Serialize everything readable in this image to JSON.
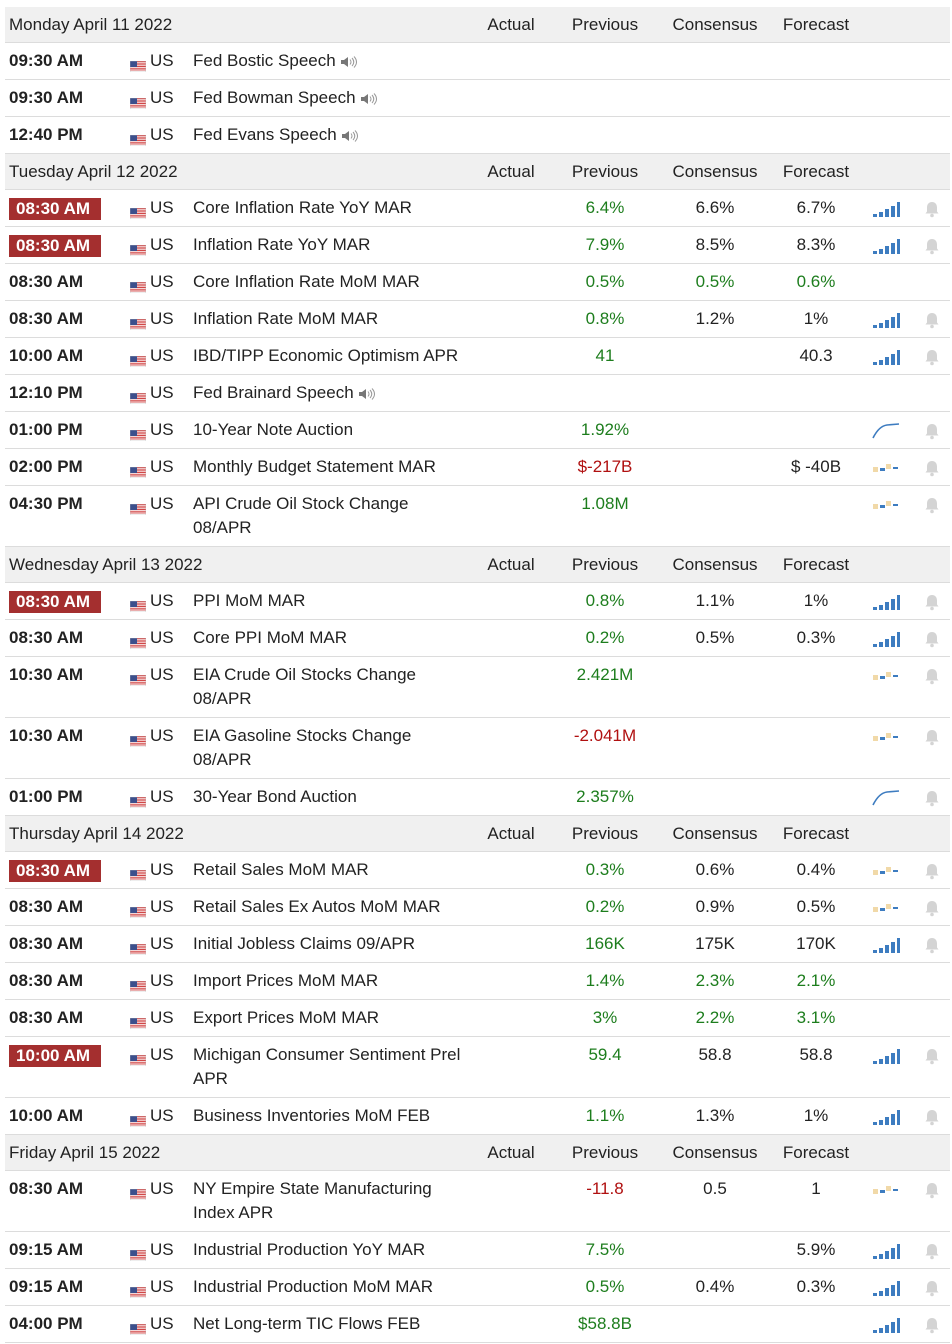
{
  "columns": [
    "Actual",
    "Previous",
    "Consensus",
    "Forecast"
  ],
  "days": [
    {
      "date": "Monday April 11 2022",
      "events": [
        {
          "time": "09:30 AM",
          "country": "US",
          "event": "Fed Bostic Speech",
          "speech": true
        },
        {
          "time": "09:30 AM",
          "country": "US",
          "event": "Fed Bowman Speech",
          "speech": true
        },
        {
          "time": "12:40 PM",
          "country": "US",
          "event": "Fed Evans Speech",
          "speech": true
        }
      ]
    },
    {
      "date": "Tuesday April 12 2022",
      "events": [
        {
          "time": "08:30 AM",
          "highlight": true,
          "country": "US",
          "event": "Core Inflation Rate YoY MAR",
          "previous": "6.4%",
          "previous_color": "#1d7d1d",
          "consensus": "6.6%",
          "forecast": "6.7%",
          "mini_chart": "bars",
          "alert": true
        },
        {
          "time": "08:30 AM",
          "highlight": true,
          "country": "US",
          "event": "Inflation Rate YoY MAR",
          "previous": "7.9%",
          "previous_color": "#1d7d1d",
          "consensus": "8.5%",
          "forecast": "8.3%",
          "mini_chart": "bars",
          "alert": true
        },
        {
          "time": "08:30 AM",
          "country": "US",
          "event": "Core Inflation Rate MoM MAR",
          "previous": "0.5%",
          "previous_color": "#1d7d1d",
          "consensus": "0.5%",
          "consensus_color": "#1d7d1d",
          "forecast": "0.6%",
          "forecast_color": "#1d7d1d"
        },
        {
          "time": "08:30 AM",
          "country": "US",
          "event": "Inflation Rate MoM MAR",
          "previous": "0.8%",
          "previous_color": "#1d7d1d",
          "consensus": "1.2%",
          "forecast": "1%",
          "mini_chart": "bars",
          "alert": true
        },
        {
          "time": "10:00 AM",
          "country": "US",
          "event": "IBD/TIPP Economic Optimism APR",
          "previous": "41",
          "previous_color": "#1d7d1d",
          "forecast": "40.3",
          "mini_chart": "bars",
          "alert": true
        },
        {
          "time": "12:10 PM",
          "country": "US",
          "event": "Fed Brainard Speech",
          "speech": true
        },
        {
          "time": "01:00 PM",
          "country": "US",
          "event": "10-Year Note Auction",
          "previous": "1.92%",
          "previous_color": "#1d7d1d",
          "mini_chart": "curve",
          "alert": true
        },
        {
          "time": "02:00 PM",
          "country": "US",
          "event": "Monthly Budget Statement MAR",
          "previous": "$-217B",
          "previous_color": "#b01010",
          "forecast": "$ -40B",
          "mini_chart": "mixed",
          "alert": true
        },
        {
          "time": "04:30 PM",
          "country": "US",
          "event": "API Crude Oil Stock Change 08/APR",
          "previous": "1.08M",
          "previous_color": "#1d7d1d",
          "mini_chart": "mixed",
          "alert": true
        }
      ]
    },
    {
      "date": "Wednesday April 13 2022",
      "events": [
        {
          "time": "08:30 AM",
          "highlight": true,
          "country": "US",
          "event": "PPI MoM MAR",
          "previous": "0.8%",
          "previous_color": "#1d7d1d",
          "consensus": "1.1%",
          "forecast": "1%",
          "mini_chart": "bars",
          "alert": true
        },
        {
          "time": "08:30 AM",
          "country": "US",
          "event": "Core PPI MoM MAR",
          "previous": "0.2%",
          "previous_color": "#1d7d1d",
          "consensus": "0.5%",
          "forecast": "0.3%",
          "mini_chart": "bars",
          "alert": true
        },
        {
          "time": "10:30 AM",
          "country": "US",
          "event": "EIA Crude Oil Stocks Change 08/APR",
          "previous": "2.421M",
          "previous_color": "#1d7d1d",
          "mini_chart": "mixed",
          "alert": true
        },
        {
          "time": "10:30 AM",
          "country": "US",
          "event": "EIA Gasoline Stocks Change 08/APR",
          "previous": "-2.041M",
          "previous_color": "#b01010",
          "mini_chart": "mixed",
          "alert": true
        },
        {
          "time": "01:00 PM",
          "country": "US",
          "event": "30-Year Bond Auction",
          "previous": "2.357%",
          "previous_color": "#1d7d1d",
          "mini_chart": "curve",
          "alert": true
        }
      ]
    },
    {
      "date": "Thursday April 14 2022",
      "events": [
        {
          "time": "08:30 AM",
          "highlight": true,
          "country": "US",
          "event": "Retail Sales MoM MAR",
          "previous": "0.3%",
          "previous_color": "#1d7d1d",
          "consensus": "0.6%",
          "forecast": "0.4%",
          "mini_chart": "mixed",
          "alert": true
        },
        {
          "time": "08:30 AM",
          "country": "US",
          "event": "Retail Sales Ex Autos MoM MAR",
          "previous": "0.2%",
          "previous_color": "#1d7d1d",
          "consensus": "0.9%",
          "forecast": "0.5%",
          "mini_chart": "mixed",
          "alert": true
        },
        {
          "time": "08:30 AM",
          "country": "US",
          "event": "Initial Jobless Claims 09/APR",
          "previous": "166K",
          "previous_color": "#1d7d1d",
          "consensus": "175K",
          "forecast": "170K",
          "mini_chart": "bars",
          "alert": true
        },
        {
          "time": "08:30 AM",
          "country": "US",
          "event": "Import Prices MoM MAR",
          "previous": "1.4%",
          "previous_color": "#1d7d1d",
          "consensus": "2.3%",
          "consensus_color": "#1d7d1d",
          "forecast": "2.1%",
          "forecast_color": "#1d7d1d"
        },
        {
          "time": "08:30 AM",
          "country": "US",
          "event": "Export Prices MoM MAR",
          "previous": "3%",
          "previous_color": "#1d7d1d",
          "consensus": "2.2%",
          "consensus_color": "#1d7d1d",
          "forecast": "3.1%",
          "forecast_color": "#1d7d1d"
        },
        {
          "time": "10:00 AM",
          "highlight": true,
          "country": "US",
          "event": "Michigan Consumer Sentiment Prel APR",
          "previous": "59.4",
          "previous_color": "#1d7d1d",
          "consensus": "58.8",
          "forecast": "58.8",
          "mini_chart": "bars",
          "alert": true
        },
        {
          "time": "10:00 AM",
          "country": "US",
          "event": "Business Inventories MoM FEB",
          "previous": "1.1%",
          "previous_color": "#1d7d1d",
          "consensus": "1.3%",
          "forecast": "1%",
          "mini_chart": "bars",
          "alert": true
        }
      ]
    },
    {
      "date": "Friday April 15 2022",
      "events": [
        {
          "time": "08:30 AM",
          "country": "US",
          "event": "NY Empire State Manufacturing Index APR",
          "previous": "-11.8",
          "previous_color": "#b01010",
          "consensus": "0.5",
          "forecast": "1",
          "mini_chart": "mixed",
          "alert": true
        },
        {
          "time": "09:15 AM",
          "country": "US",
          "event": "Industrial Production YoY MAR",
          "previous": "7.5%",
          "previous_color": "#1d7d1d",
          "forecast": "5.9%",
          "mini_chart": "bars",
          "alert": true
        },
        {
          "time": "09:15 AM",
          "country": "US",
          "event": "Industrial Production MoM MAR",
          "previous": "0.5%",
          "previous_color": "#1d7d1d",
          "consensus": "0.4%",
          "forecast": "0.3%",
          "mini_chart": "bars",
          "alert": true
        },
        {
          "time": "04:00 PM",
          "country": "US",
          "event": "Net Long-term TIC Flows FEB",
          "previous": "$58.8B",
          "previous_color": "#1d7d1d",
          "mini_chart": "bars",
          "alert": true
        }
      ]
    }
  ]
}
